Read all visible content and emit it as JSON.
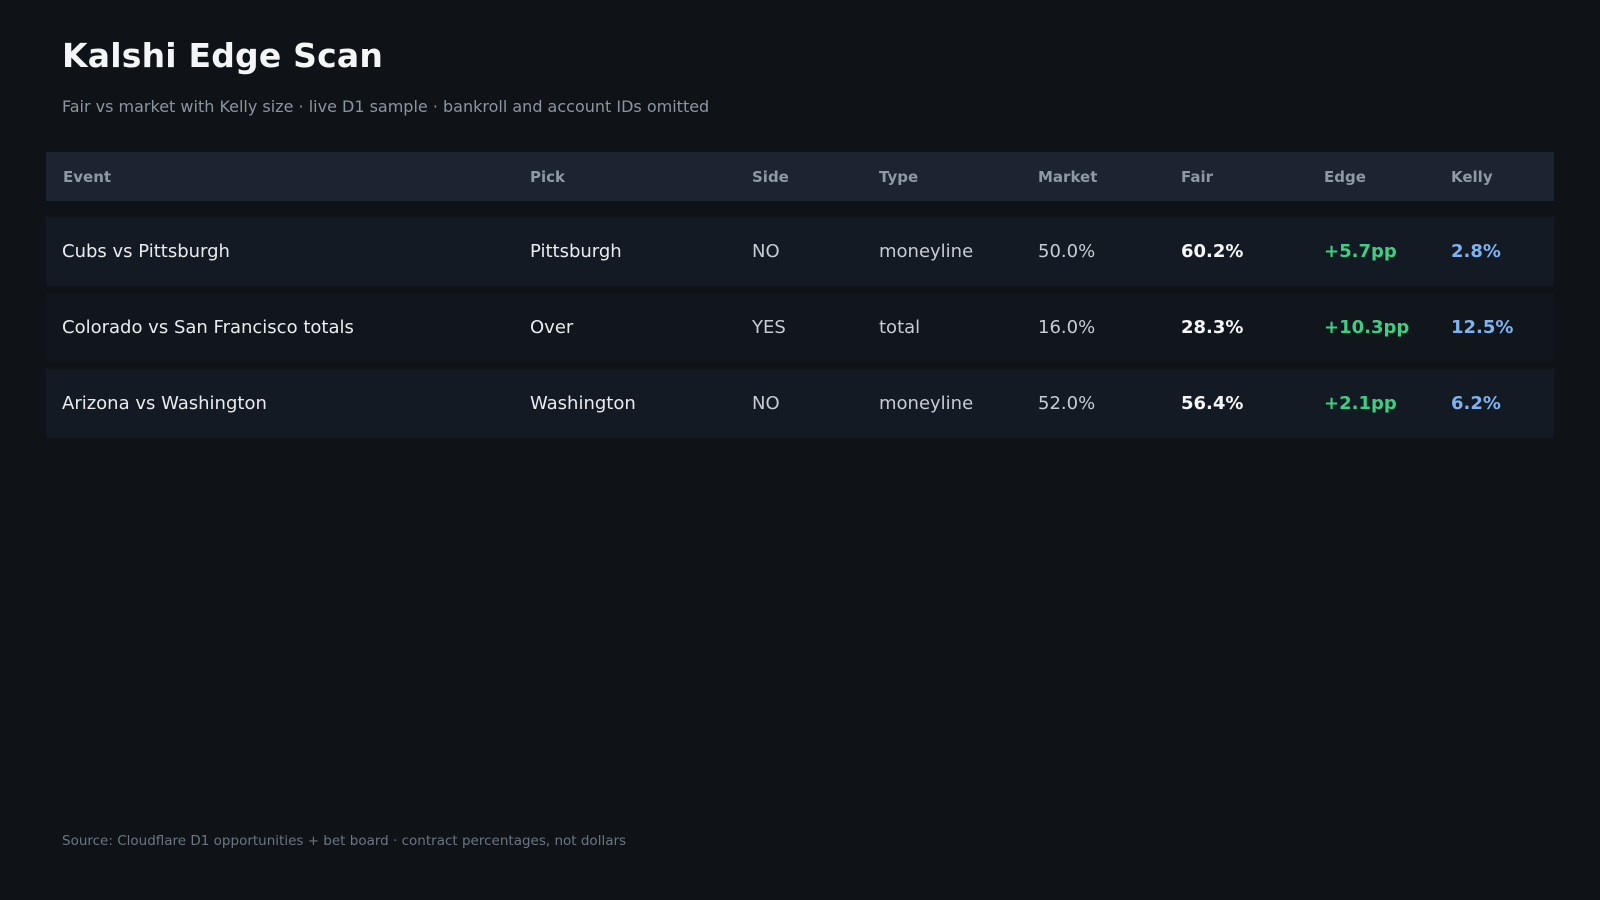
{
  "header": {
    "title": "Kalshi Edge Scan",
    "subtitle": "Fair vs market with Kelly size  ·  live D1 sample  ·  bankroll and account IDs omitted"
  },
  "table": {
    "columns": [
      "Event",
      "Pick",
      "Side",
      "Type",
      "Market",
      "Fair",
      "Edge",
      "Kelly"
    ],
    "rows": [
      {
        "event": "Cubs vs Pittsburgh",
        "pick": "Pittsburgh",
        "side": "NO",
        "type": "moneyline",
        "market": "50.0%",
        "fair": "60.2%",
        "edge": "+5.7pp",
        "kelly": "2.8%"
      },
      {
        "event": "Colorado vs San Francisco totals",
        "pick": "Over",
        "side": "YES",
        "type": "total",
        "market": "16.0%",
        "fair": "28.3%",
        "edge": "+10.3pp",
        "kelly": "12.5%"
      },
      {
        "event": "Arizona vs Washington",
        "pick": "Washington",
        "side": "NO",
        "type": "moneyline",
        "market": "52.0%",
        "fair": "56.4%",
        "edge": "+2.1pp",
        "kelly": "6.2%"
      }
    ]
  },
  "footer": {
    "text": "Source: Cloudflare D1 opportunities + bet board  ·  contract percentages, not dollars"
  },
  "colors": {
    "background": "#0f1317",
    "header_row": "#1b2430",
    "edge_positive": "#3fcf83",
    "kelly": "#7fb2ef"
  }
}
